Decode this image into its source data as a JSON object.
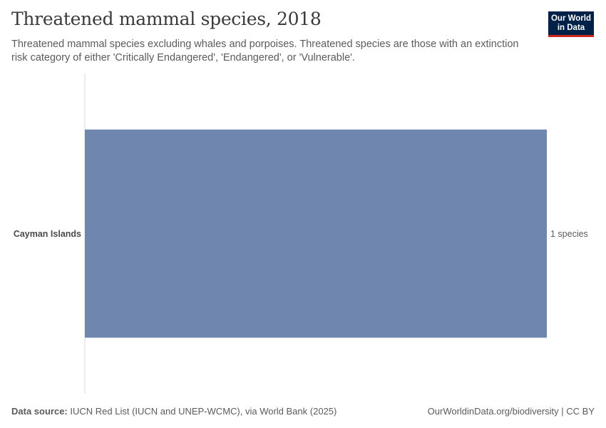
{
  "title": "Threatened mammal species, 2018",
  "subtitle": "Threatened mammal species excluding whales and porpoises. Threatened species are those with an extinction risk category of either 'Critically Endangered', 'Endangered', or 'Vulnerable'.",
  "logo": {
    "line1": "Our World",
    "line2": "in Data"
  },
  "footer": {
    "source_label": "Data source:",
    "source_text": "IUCN Red List (IUCN and UNEP-WCMC), via World Bank (2025)",
    "right_text": "OurWorldinData.org/biodiversity | CC BY"
  },
  "colors": {
    "bar": "#6f87af",
    "axis": "#d9d9d9",
    "label": "#4a4a4a",
    "value": "#5b5b5b"
  },
  "chart_data": {
    "type": "bar",
    "orientation": "horizontal",
    "title": "Threatened mammal species, 2018",
    "categories": [
      "Cayman Islands"
    ],
    "values": [
      1
    ],
    "value_labels": [
      "1 species"
    ],
    "unit": "species",
    "xlim": [
      0,
      1
    ],
    "grid": false
  }
}
